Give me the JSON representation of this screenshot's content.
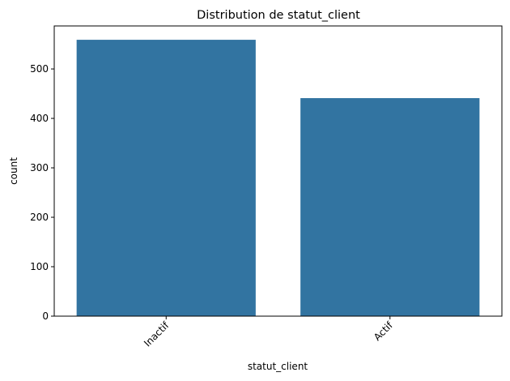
{
  "chart_data": {
    "type": "bar",
    "title": "Distribution de statut_client",
    "xlabel": "statut_client",
    "ylabel": "count",
    "categories": [
      "Inactif",
      "Actif"
    ],
    "values": [
      559,
      441
    ],
    "ylim": [
      0,
      587
    ],
    "yticks": [
      0,
      100,
      200,
      300,
      400,
      500
    ],
    "bar_color": "#3274a1",
    "grid": false,
    "xtick_rotation_deg": 45
  }
}
